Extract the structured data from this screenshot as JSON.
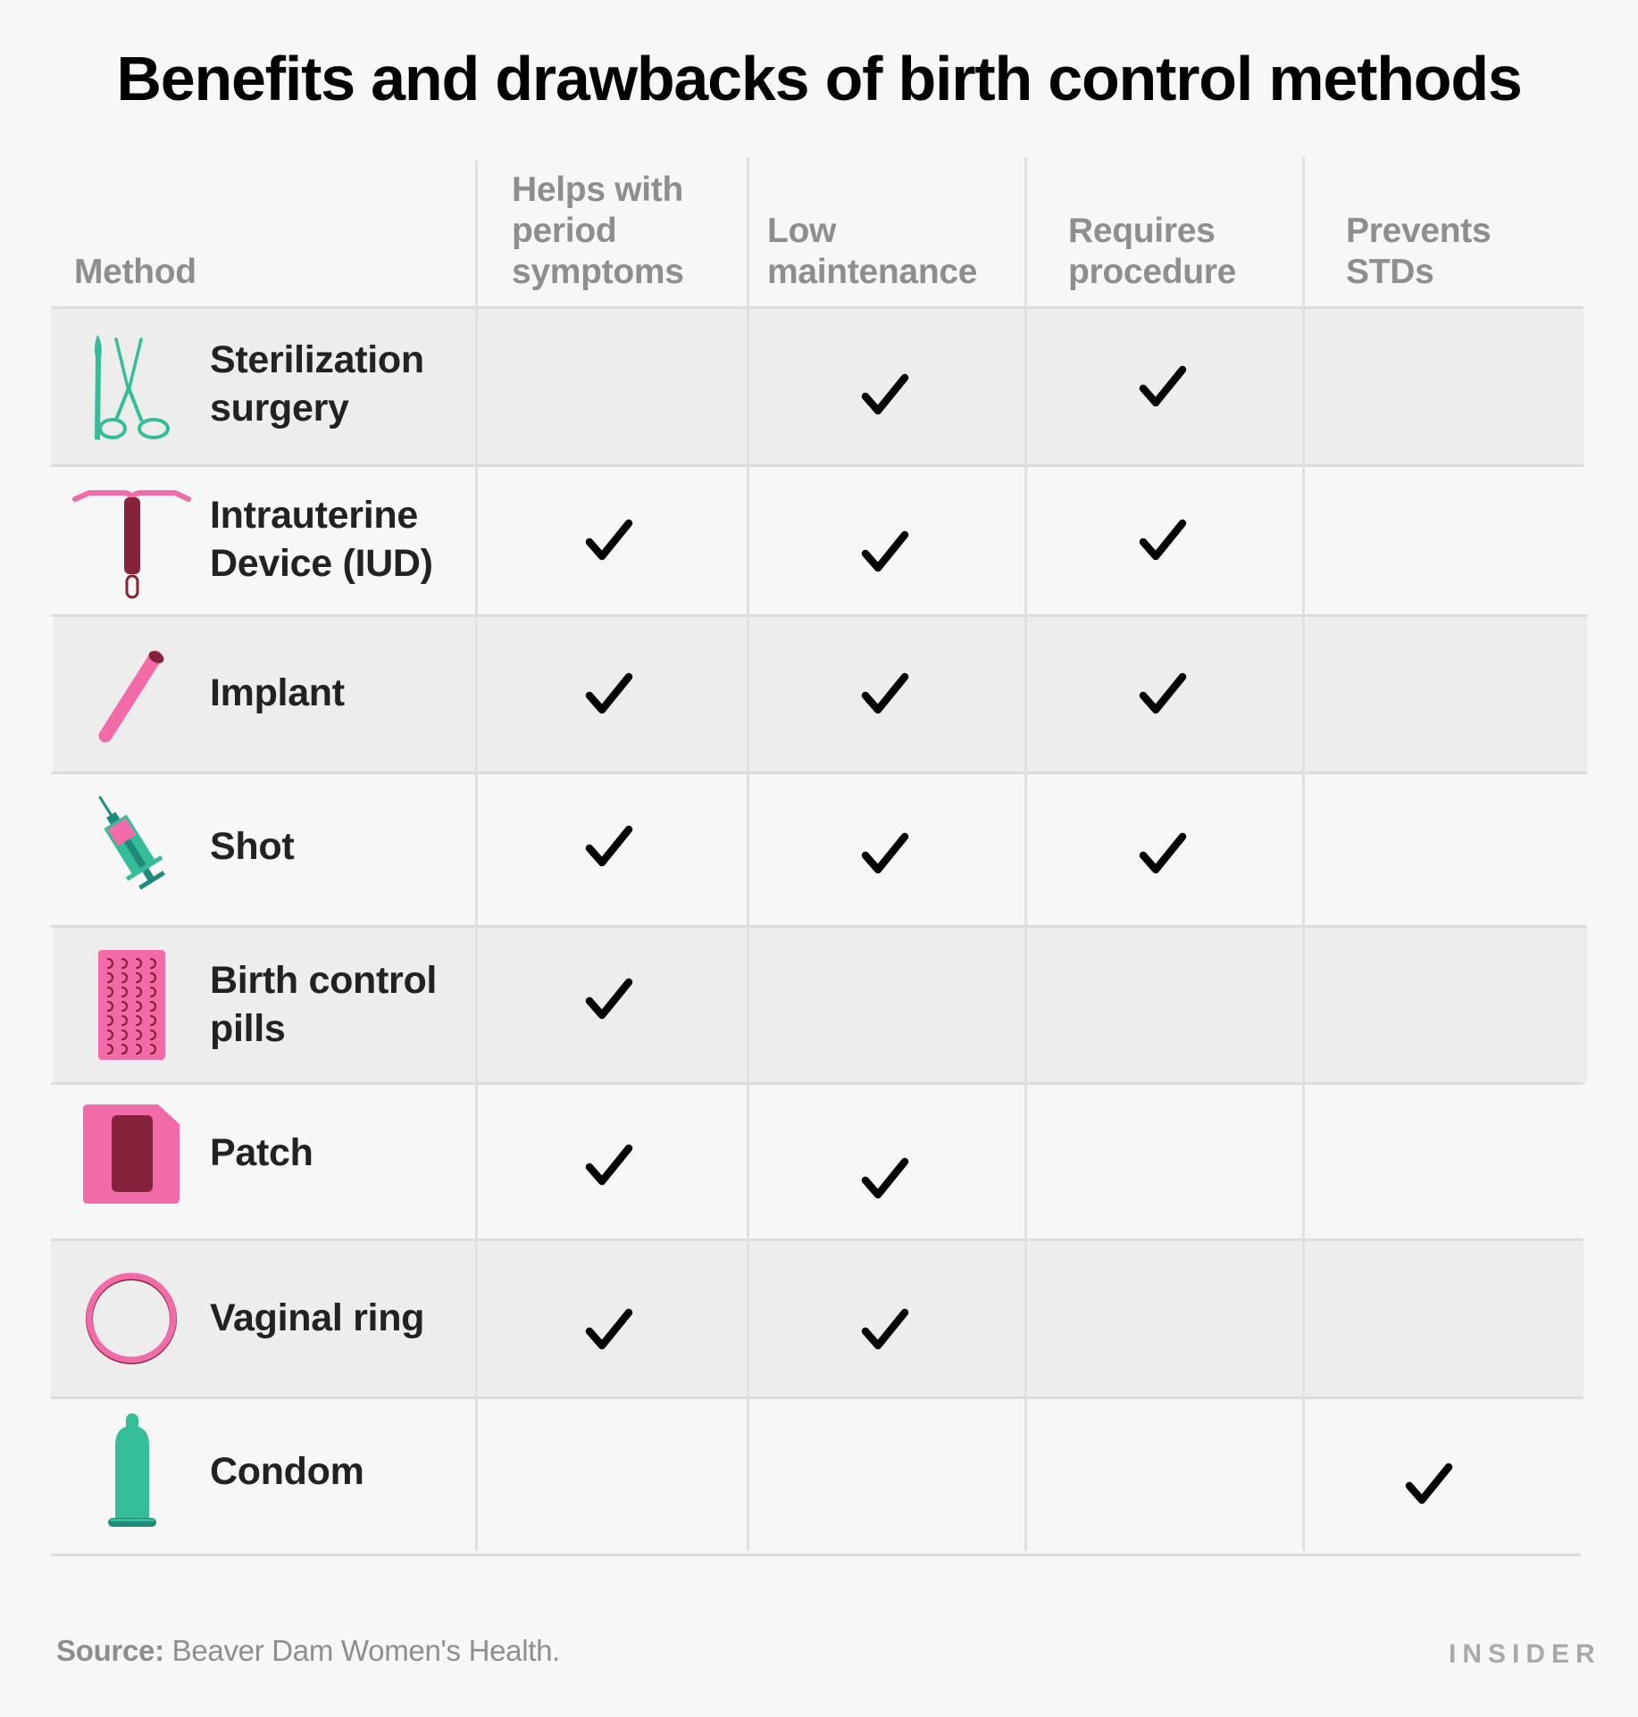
{
  "title": "Benefits and drawbacks of birth control methods",
  "columns": [
    {
      "key": "method",
      "label_lines": [
        "Method"
      ]
    },
    {
      "key": "period",
      "label_lines": [
        "Helps with",
        "period",
        "symptoms"
      ]
    },
    {
      "key": "lowmaint",
      "label_lines": [
        "Low",
        "maintenance"
      ]
    },
    {
      "key": "procedure",
      "label_lines": [
        "Requires",
        "procedure"
      ]
    },
    {
      "key": "stds",
      "label_lines": [
        "Prevents",
        "STDs"
      ]
    }
  ],
  "rows": [
    {
      "method": "Sterilization surgery",
      "label_lines": [
        "Sterilization",
        "surgery"
      ],
      "icon": "scissors-scalpel-icon",
      "helps_period_symptoms": false,
      "low_maintenance": true,
      "requires_procedure": true,
      "prevents_stds": false
    },
    {
      "method": "Intrauterine Device (IUD)",
      "label_lines": [
        "Intrauterine",
        "Device (IUD)"
      ],
      "icon": "iud-icon",
      "helps_period_symptoms": true,
      "low_maintenance": true,
      "requires_procedure": true,
      "prevents_stds": false
    },
    {
      "method": "Implant",
      "label_lines": [
        "Implant"
      ],
      "icon": "implant-rod-icon",
      "helps_period_symptoms": true,
      "low_maintenance": true,
      "requires_procedure": true,
      "prevents_stds": false
    },
    {
      "method": "Shot",
      "label_lines": [
        "Shot"
      ],
      "icon": "syringe-icon",
      "helps_period_symptoms": true,
      "low_maintenance": true,
      "requires_procedure": true,
      "prevents_stds": false
    },
    {
      "method": "Birth control pills",
      "label_lines": [
        "Birth control",
        "pills"
      ],
      "icon": "pill-pack-icon",
      "helps_period_symptoms": true,
      "low_maintenance": false,
      "requires_procedure": false,
      "prevents_stds": false
    },
    {
      "method": "Patch",
      "label_lines": [
        "Patch"
      ],
      "icon": "patch-icon",
      "helps_period_symptoms": true,
      "low_maintenance": true,
      "requires_procedure": false,
      "prevents_stds": false
    },
    {
      "method": "Vaginal ring",
      "label_lines": [
        "Vaginal ring"
      ],
      "icon": "ring-icon",
      "helps_period_symptoms": true,
      "low_maintenance": true,
      "requires_procedure": false,
      "prevents_stds": false
    },
    {
      "method": "Condom",
      "label_lines": [
        "Condom"
      ],
      "icon": "condom-icon",
      "helps_period_symptoms": false,
      "low_maintenance": false,
      "requires_procedure": false,
      "prevents_stds": true
    }
  ],
  "chart_data": {
    "type": "table",
    "title": "Benefits and drawbacks of birth control methods",
    "columns": [
      "Method",
      "Helps with period symptoms",
      "Low maintenance",
      "Requires procedure",
      "Prevents STDs"
    ],
    "rows": [
      [
        "Sterilization surgery",
        false,
        true,
        true,
        false
      ],
      [
        "Intrauterine Device (IUD)",
        true,
        true,
        true,
        false
      ],
      [
        "Implant",
        true,
        true,
        true,
        false
      ],
      [
        "Shot",
        true,
        true,
        true,
        false
      ],
      [
        "Birth control pills",
        true,
        false,
        false,
        false
      ],
      [
        "Patch",
        true,
        true,
        false,
        false
      ],
      [
        "Vaginal ring",
        true,
        true,
        false,
        false
      ],
      [
        "Condom",
        false,
        false,
        false,
        true
      ]
    ]
  },
  "footer": {
    "source_label": "Source:",
    "source_text": " Beaver Dam Women's Health.",
    "brand": "INSIDER"
  },
  "colors": {
    "background": "#f7f7f7",
    "row_shade": "#ededed",
    "grid_line": "#dddddd",
    "header_text": "#8e8e8e",
    "label_text": "#222222",
    "check": "#000000",
    "teal": "#35bd99",
    "teal_dark": "#1f8a7a",
    "pink": "#f26aa8",
    "maroon": "#842339"
  }
}
